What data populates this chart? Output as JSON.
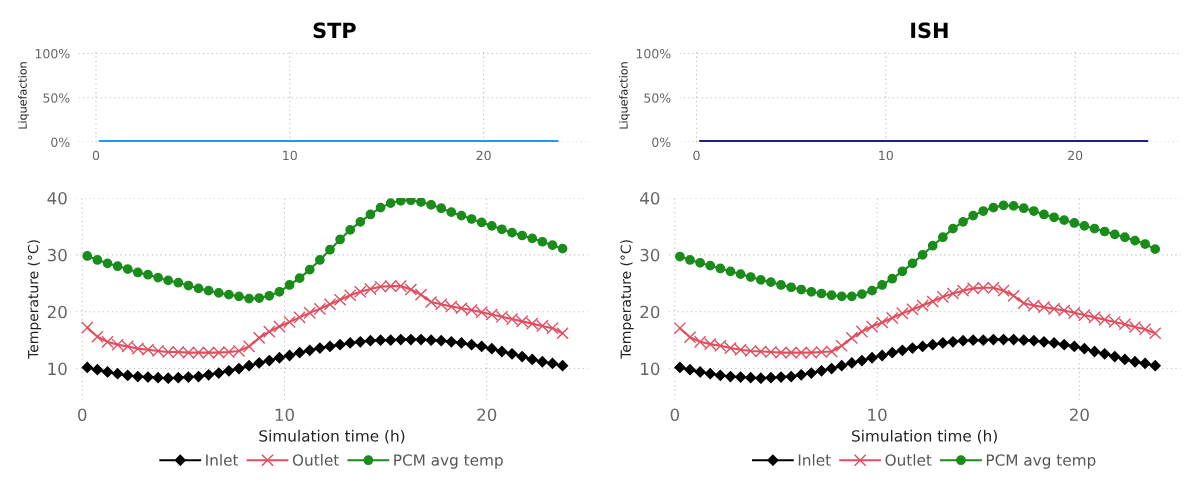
{
  "chart_data": [
    {
      "type": "line",
      "title": "STP",
      "ylabel": "Liquefaction",
      "x": [
        0.25,
        0.75,
        1.25,
        1.75,
        2.25,
        2.75,
        3.25,
        3.75,
        4.25,
        4.75,
        5.25,
        5.75,
        6.25,
        6.75,
        7.25,
        7.75,
        8.25,
        8.75,
        9.25,
        9.75,
        10.25,
        10.75,
        11.25,
        11.75,
        12.25,
        12.75,
        13.25,
        13.75,
        14.25,
        14.75,
        15.25,
        15.75,
        16.25,
        16.75,
        17.25,
        17.75,
        18.25,
        18.75,
        19.25,
        19.75,
        20.25,
        20.75,
        21.25,
        21.75,
        22.25,
        22.75,
        23.25,
        23.75
      ],
      "series": [
        {
          "color": "#1a9bfc",
          "values": [
            0,
            0,
            0,
            0,
            0,
            0,
            0,
            0,
            0,
            0,
            0,
            0,
            0,
            0,
            0,
            0,
            0,
            0,
            0,
            0,
            0,
            0,
            0,
            0,
            0,
            0,
            0,
            0,
            0,
            0,
            0,
            0,
            0,
            0,
            0,
            0,
            0,
            0,
            0,
            0,
            0,
            0,
            0,
            0,
            0,
            0,
            0,
            0
          ]
        }
      ],
      "xlim": [
        -0.9,
        25.5
      ],
      "xticks": [
        0,
        10,
        20
      ],
      "ylim": [
        0,
        1.05
      ],
      "yticks": [
        {
          "value": 0,
          "label": "0%"
        },
        {
          "value": 0.5,
          "label": "50%"
        },
        {
          "value": 1,
          "label": "100%"
        }
      ],
      "grid": true,
      "marker": "none",
      "line_style": "solid"
    },
    {
      "type": "line",
      "title": "ISH",
      "ylabel": "Liquefaction",
      "x": [
        0.25,
        0.75,
        1.25,
        1.75,
        2.25,
        2.75,
        3.25,
        3.75,
        4.25,
        4.75,
        5.25,
        5.75,
        6.25,
        6.75,
        7.25,
        7.75,
        8.25,
        8.75,
        9.25,
        9.75,
        10.25,
        10.75,
        11.25,
        11.75,
        12.25,
        12.75,
        13.25,
        13.75,
        14.25,
        14.75,
        15.25,
        15.75,
        16.25,
        16.75,
        17.25,
        17.75,
        18.25,
        18.75,
        19.25,
        19.75,
        20.25,
        20.75,
        21.25,
        21.75,
        22.25,
        22.75,
        23.25,
        23.75
      ],
      "series": [
        {
          "color": "#1f1f8c",
          "values": [
            0,
            0,
            0,
            0,
            0,
            0,
            0,
            0,
            0,
            0,
            0,
            0,
            0,
            0,
            0,
            0,
            0,
            0,
            0,
            0,
            0,
            0,
            0,
            0,
            0,
            0,
            0,
            0,
            0,
            0,
            0,
            0,
            0,
            0,
            0,
            0,
            0,
            0,
            0,
            0,
            0,
            0,
            0,
            0,
            0,
            0,
            0,
            0
          ]
        }
      ],
      "xlim": [
        -0.9,
        25.5
      ],
      "xticks": [
        0,
        10,
        20
      ],
      "ylim": [
        0,
        1.05
      ],
      "yticks": [
        {
          "value": 0,
          "label": "0%"
        },
        {
          "value": 0.5,
          "label": "50%"
        },
        {
          "value": 1,
          "label": "100%"
        }
      ],
      "grid": true,
      "marker": "none",
      "line_style": "solid"
    },
    {
      "type": "line",
      "xlabel": "Simulation time (h)",
      "ylabel": "Temperature (°C)",
      "x": [
        0.25,
        0.75,
        1.25,
        1.75,
        2.25,
        2.75,
        3.25,
        3.75,
        4.25,
        4.75,
        5.25,
        5.75,
        6.25,
        6.75,
        7.25,
        7.75,
        8.25,
        8.75,
        9.25,
        9.75,
        10.25,
        10.75,
        11.25,
        11.75,
        12.25,
        12.75,
        13.25,
        13.75,
        14.25,
        14.75,
        15.25,
        15.75,
        16.25,
        16.75,
        17.25,
        17.75,
        18.25,
        18.75,
        19.25,
        19.75,
        20.25,
        20.75,
        21.25,
        21.75,
        22.25,
        22.75,
        23.25,
        23.75
      ],
      "series": [
        {
          "name": "Inlet",
          "color": "#000000",
          "marker": "diamond",
          "values": [
            10.2,
            9.8,
            9.4,
            9.1,
            8.8,
            8.6,
            8.5,
            8.4,
            8.3,
            8.4,
            8.5,
            8.6,
            8.9,
            9.2,
            9.6,
            10.0,
            10.5,
            11.0,
            11.4,
            11.9,
            12.3,
            12.8,
            13.2,
            13.6,
            13.9,
            14.2,
            14.5,
            14.7,
            14.9,
            15.0,
            15.0,
            15.1,
            15.1,
            15.1,
            15.0,
            14.9,
            14.7,
            14.5,
            14.2,
            13.9,
            13.5,
            13.0,
            12.6,
            12.1,
            11.6,
            11.2,
            10.9,
            10.5
          ]
        },
        {
          "name": "Outlet",
          "color": "#e04e5f",
          "marker": "cross",
          "values": [
            17.2,
            15.6,
            14.7,
            14.2,
            13.9,
            13.5,
            13.3,
            13.1,
            12.9,
            12.9,
            12.8,
            12.8,
            12.8,
            12.8,
            12.9,
            13.1,
            13.9,
            15.4,
            16.5,
            17.4,
            18.2,
            19.0,
            19.8,
            20.5,
            21.3,
            22.1,
            22.9,
            23.5,
            24.0,
            24.4,
            24.5,
            24.5,
            23.9,
            23.0,
            21.7,
            21.3,
            20.9,
            20.6,
            20.3,
            19.9,
            19.5,
            19.1,
            18.7,
            18.3,
            17.9,
            17.5,
            17.1,
            16.2
          ]
        },
        {
          "name": "PCM avg temp",
          "color": "#1a8c1a",
          "marker": "circle",
          "values": [
            29.8,
            29.1,
            28.5,
            28.0,
            27.5,
            26.9,
            26.5,
            26.0,
            25.5,
            25.1,
            24.6,
            24.1,
            23.7,
            23.3,
            23.0,
            22.7,
            22.3,
            22.4,
            22.8,
            23.5,
            24.7,
            25.9,
            27.4,
            29.1,
            30.9,
            32.7,
            34.4,
            35.8,
            37.1,
            38.3,
            39.1,
            39.5,
            39.6,
            39.3,
            38.8,
            38.2,
            37.5,
            36.9,
            36.3,
            35.7,
            35.1,
            34.5,
            33.9,
            33.4,
            32.9,
            32.3,
            31.7,
            31.1
          ]
        }
      ],
      "xlim": [
        -0.3,
        25
      ],
      "xticks": [
        0,
        10,
        20
      ],
      "ylim": [
        4.5,
        40
      ],
      "yticks": [
        10,
        20,
        30,
        40
      ],
      "grid": true,
      "legend": "bottom",
      "line_style": "solid"
    },
    {
      "type": "line",
      "xlabel": "Simulation time (h)",
      "ylabel": "Temperature (°C)",
      "x": [
        0.25,
        0.75,
        1.25,
        1.75,
        2.25,
        2.75,
        3.25,
        3.75,
        4.25,
        4.75,
        5.25,
        5.75,
        6.25,
        6.75,
        7.25,
        7.75,
        8.25,
        8.75,
        9.25,
        9.75,
        10.25,
        10.75,
        11.25,
        11.75,
        12.25,
        12.75,
        13.25,
        13.75,
        14.25,
        14.75,
        15.25,
        15.75,
        16.25,
        16.75,
        17.25,
        17.75,
        18.25,
        18.75,
        19.25,
        19.75,
        20.25,
        20.75,
        21.25,
        21.75,
        22.25,
        22.75,
        23.25,
        23.75
      ],
      "series": [
        {
          "name": "Inlet",
          "color": "#000000",
          "marker": "diamond",
          "values": [
            10.2,
            9.8,
            9.4,
            9.1,
            8.8,
            8.6,
            8.5,
            8.4,
            8.3,
            8.4,
            8.5,
            8.6,
            8.9,
            9.2,
            9.6,
            10.0,
            10.5,
            11.0,
            11.4,
            11.9,
            12.3,
            12.8,
            13.2,
            13.6,
            13.9,
            14.2,
            14.5,
            14.7,
            14.9,
            15.0,
            15.0,
            15.1,
            15.1,
            15.1,
            15.0,
            14.9,
            14.7,
            14.5,
            14.2,
            13.9,
            13.5,
            13.0,
            12.6,
            12.1,
            11.6,
            11.2,
            10.9,
            10.5
          ]
        },
        {
          "name": "Outlet",
          "color": "#e04e5f",
          "marker": "cross",
          "values": [
            17.1,
            15.5,
            14.7,
            14.3,
            14.0,
            13.6,
            13.3,
            13.1,
            13.0,
            12.9,
            12.8,
            12.8,
            12.8,
            12.8,
            12.9,
            13.0,
            14.0,
            15.4,
            16.5,
            17.4,
            18.1,
            18.9,
            19.7,
            20.4,
            21.1,
            21.8,
            22.6,
            23.2,
            23.7,
            24.1,
            24.2,
            24.2,
            23.7,
            22.8,
            21.5,
            21.1,
            20.8,
            20.5,
            20.2,
            19.8,
            19.4,
            19.0,
            18.6,
            18.2,
            17.8,
            17.3,
            16.9,
            16.2
          ]
        },
        {
          "name": "PCM avg temp",
          "color": "#1a8c1a",
          "marker": "circle",
          "values": [
            29.7,
            29.1,
            28.6,
            28.1,
            27.6,
            27.1,
            26.6,
            26.1,
            25.6,
            25.2,
            24.7,
            24.3,
            23.9,
            23.5,
            23.2,
            22.9,
            22.7,
            22.7,
            23.1,
            23.7,
            24.7,
            25.8,
            27.1,
            28.5,
            30.0,
            31.6,
            33.1,
            34.6,
            35.8,
            36.9,
            37.7,
            38.3,
            38.7,
            38.6,
            38.2,
            37.7,
            37.1,
            36.6,
            36.1,
            35.6,
            35.1,
            34.6,
            34.1,
            33.6,
            33.1,
            32.5,
            31.9,
            31.0
          ]
        }
      ],
      "xlim": [
        -0.3,
        25
      ],
      "xticks": [
        0,
        10,
        20
      ],
      "ylim": [
        4.5,
        40
      ],
      "yticks": [
        10,
        20,
        30,
        40
      ],
      "grid": true,
      "legend": "bottom",
      "line_style": "solid"
    }
  ]
}
